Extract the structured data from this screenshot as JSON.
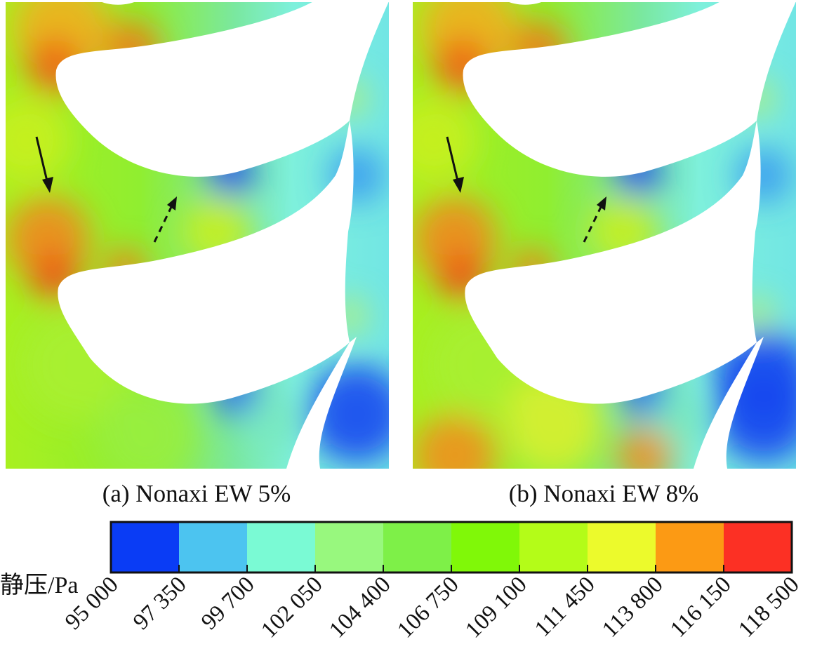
{
  "chart_data": {
    "type": "heatmap",
    "title": "",
    "panels": [
      {
        "id": "a",
        "caption": "(a) Nonaxi EW 5%"
      },
      {
        "id": "b",
        "caption": "(b) Nonaxi EW 8%"
      }
    ],
    "colorbar": {
      "label": "静压/Pa",
      "ticks": [
        "95 000",
        "97 350",
        "99 700",
        "102 050",
        "104 400",
        "106 750",
        "109 100",
        "111 450",
        "113 800",
        "116 150",
        "118 500"
      ],
      "values": [
        95000,
        97350,
        99700,
        102050,
        104400,
        106750,
        109100,
        111450,
        113800,
        116150,
        118500
      ],
      "range": [
        95000,
        118500
      ],
      "colors": [
        "#0a3cf5",
        "#4cc4f0",
        "#7afad4",
        "#98f87e",
        "#7ef048",
        "#80f808",
        "#b4fc18",
        "#ecfa2c",
        "#fc9a14",
        "#fc3024"
      ]
    }
  }
}
